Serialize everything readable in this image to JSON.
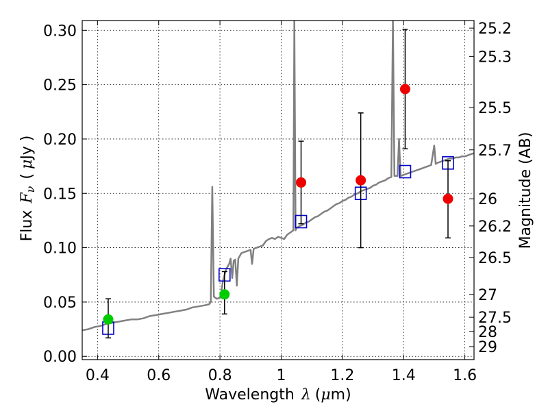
{
  "chart_data": {
    "type": "scatter",
    "title": "",
    "xlabel": "Wavelength",
    "xlabel_symbol": "λ",
    "xlabel_unit_open": "(",
    "xlabel_unit_mu": "μ",
    "xlabel_unit_rest": "m)",
    "ylabel": "Flux",
    "ylabel_symbol": "F",
    "ylabel_symbol_sub": "ν",
    "ylabel_unit_open": "(",
    "ylabel_unit_mu": "μ",
    "ylabel_unit_rest": "Jy )",
    "y2label": "Magnitude (AB)",
    "xlim": [
      0.35,
      1.63
    ],
    "ylim": [
      -0.003,
      0.309
    ],
    "grid": true,
    "x_ticks": [
      {
        "value": 0.4,
        "label": "0.4"
      },
      {
        "value": 0.6,
        "label": "0.6"
      },
      {
        "value": 0.8,
        "label": "0.8"
      },
      {
        "value": 1.0,
        "label": "1"
      },
      {
        "value": 1.2,
        "label": "1.2"
      },
      {
        "value": 1.4,
        "label": "1.4"
      },
      {
        "value": 1.6,
        "label": "1.6"
      }
    ],
    "y_ticks": [
      {
        "value": 0.0,
        "label": "0.00"
      },
      {
        "value": 0.05,
        "label": "0.05"
      },
      {
        "value": 0.1,
        "label": "0.10"
      },
      {
        "value": 0.15,
        "label": "0.15"
      },
      {
        "value": 0.2,
        "label": "0.20"
      },
      {
        "value": 0.25,
        "label": "0.25"
      },
      {
        "value": 0.3,
        "label": "0.30"
      }
    ],
    "y2_ticks": [
      {
        "flux": 0.302,
        "label": "25.2"
      },
      {
        "flux": 0.276,
        "label": "25.3"
      },
      {
        "flux": 0.229,
        "label": "25.5"
      },
      {
        "flux": 0.19,
        "label": "25.7"
      },
      {
        "flux": 0.145,
        "label": "26"
      },
      {
        "flux": 0.12,
        "label": "26.2"
      },
      {
        "flux": 0.091,
        "label": "26.5"
      },
      {
        "flux": 0.057,
        "label": "27"
      },
      {
        "flux": 0.036,
        "label": "27.5"
      },
      {
        "flux": 0.023,
        "label": "28"
      },
      {
        "flux": 0.009,
        "label": "29"
      }
    ],
    "model_color": "#808080",
    "model_spectrum": [
      [
        0.35,
        0.024
      ],
      [
        0.37,
        0.025
      ],
      [
        0.39,
        0.027
      ],
      [
        0.41,
        0.028
      ],
      [
        0.43,
        0.03
      ],
      [
        0.45,
        0.031
      ],
      [
        0.47,
        0.032
      ],
      [
        0.49,
        0.033
      ],
      [
        0.51,
        0.034
      ],
      [
        0.53,
        0.034
      ],
      [
        0.55,
        0.035
      ],
      [
        0.57,
        0.037
      ],
      [
        0.59,
        0.038
      ],
      [
        0.61,
        0.039
      ],
      [
        0.63,
        0.04
      ],
      [
        0.65,
        0.041
      ],
      [
        0.67,
        0.042
      ],
      [
        0.69,
        0.043
      ],
      [
        0.71,
        0.045
      ],
      [
        0.73,
        0.046
      ],
      [
        0.75,
        0.047
      ],
      [
        0.765,
        0.048
      ],
      [
        0.77,
        0.05
      ],
      [
        0.775,
        0.156
      ],
      [
        0.78,
        0.055
      ],
      [
        0.79,
        0.053
      ],
      [
        0.8,
        0.054
      ],
      [
        0.805,
        0.06
      ],
      [
        0.81,
        0.07
      ],
      [
        0.82,
        0.08
      ],
      [
        0.83,
        0.085
      ],
      [
        0.835,
        0.09
      ],
      [
        0.84,
        0.072
      ],
      [
        0.845,
        0.088
      ],
      [
        0.85,
        0.089
      ],
      [
        0.855,
        0.065
      ],
      [
        0.86,
        0.09
      ],
      [
        0.87,
        0.095
      ],
      [
        0.88,
        0.096
      ],
      [
        0.89,
        0.097
      ],
      [
        0.9,
        0.098
      ],
      [
        0.905,
        0.085
      ],
      [
        0.91,
        0.099
      ],
      [
        0.92,
        0.1
      ],
      [
        0.93,
        0.101
      ],
      [
        0.94,
        0.102
      ],
      [
        0.95,
        0.106
      ],
      [
        0.96,
        0.108
      ],
      [
        0.97,
        0.109
      ],
      [
        0.98,
        0.108
      ],
      [
        0.99,
        0.11
      ],
      [
        1.0,
        0.109
      ],
      [
        1.01,
        0.108
      ],
      [
        1.02,
        0.112
      ],
      [
        1.03,
        0.114
      ],
      [
        1.04,
        0.116
      ],
      [
        1.043,
        0.309
      ],
      [
        1.047,
        0.116
      ],
      [
        1.05,
        0.118
      ],
      [
        1.06,
        0.12
      ],
      [
        1.07,
        0.121
      ],
      [
        1.08,
        0.123
      ],
      [
        1.09,
        0.124
      ],
      [
        1.1,
        0.126
      ],
      [
        1.11,
        0.128
      ],
      [
        1.12,
        0.129
      ],
      [
        1.13,
        0.131
      ],
      [
        1.14,
        0.133
      ],
      [
        1.15,
        0.134
      ],
      [
        1.16,
        0.136
      ],
      [
        1.17,
        0.138
      ],
      [
        1.18,
        0.14
      ],
      [
        1.19,
        0.141
      ],
      [
        1.2,
        0.143
      ],
      [
        1.21,
        0.144
      ],
      [
        1.22,
        0.146
      ],
      [
        1.23,
        0.147
      ],
      [
        1.24,
        0.149
      ],
      [
        1.25,
        0.15
      ],
      [
        1.26,
        0.152
      ],
      [
        1.27,
        0.153
      ],
      [
        1.28,
        0.154
      ],
      [
        1.29,
        0.155
      ],
      [
        1.3,
        0.157
      ],
      [
        1.31,
        0.158
      ],
      [
        1.32,
        0.16
      ],
      [
        1.33,
        0.161
      ],
      [
        1.34,
        0.162
      ],
      [
        1.35,
        0.164
      ],
      [
        1.36,
        0.165
      ],
      [
        1.365,
        0.309
      ],
      [
        1.37,
        0.166
      ],
      [
        1.38,
        0.166
      ],
      [
        1.385,
        0.2
      ],
      [
        1.39,
        0.166
      ],
      [
        1.4,
        0.167
      ],
      [
        1.41,
        0.168
      ],
      [
        1.42,
        0.169
      ],
      [
        1.43,
        0.17
      ],
      [
        1.44,
        0.171
      ],
      [
        1.45,
        0.172
      ],
      [
        1.46,
        0.173
      ],
      [
        1.47,
        0.174
      ],
      [
        1.48,
        0.175
      ],
      [
        1.49,
        0.176
      ],
      [
        1.5,
        0.194
      ],
      [
        1.505,
        0.177
      ],
      [
        1.51,
        0.178
      ],
      [
        1.52,
        0.179
      ],
      [
        1.53,
        0.18
      ],
      [
        1.54,
        0.181
      ],
      [
        1.55,
        0.182
      ],
      [
        1.56,
        0.182
      ],
      [
        1.57,
        0.183
      ],
      [
        1.58,
        0.183
      ],
      [
        1.59,
        0.184
      ],
      [
        1.6,
        0.184
      ],
      [
        1.61,
        0.185
      ],
      [
        1.62,
        0.186
      ],
      [
        1.63,
        0.187
      ]
    ],
    "series": [
      {
        "marker": "square",
        "color": "#0000cc",
        "points": [
          {
            "x": 0.435,
            "y": 0.026
          },
          {
            "x": 0.815,
            "y": 0.075
          },
          {
            "x": 1.065,
            "y": 0.124
          },
          {
            "x": 1.26,
            "y": 0.15
          },
          {
            "x": 1.405,
            "y": 0.17
          },
          {
            "x": 1.545,
            "y": 0.178
          }
        ]
      },
      {
        "marker": "circle",
        "color": "#00cc00",
        "points": [
          {
            "x": 0.435,
            "y": 0.034,
            "err_lo": 0.017,
            "err_hi": 0.053
          },
          {
            "x": 0.815,
            "y": 0.057,
            "err_lo": 0.039,
            "err_hi": 0.078
          }
        ]
      },
      {
        "marker": "circle",
        "color": "#ee0000",
        "points": [
          {
            "x": 1.065,
            "y": 0.16,
            "err_lo": 0.122,
            "err_hi": 0.198
          },
          {
            "x": 1.26,
            "y": 0.162,
            "err_lo": 0.1,
            "err_hi": 0.224
          },
          {
            "x": 1.405,
            "y": 0.246,
            "err_lo": 0.191,
            "err_hi": 0.301
          },
          {
            "x": 1.545,
            "y": 0.145,
            "err_lo": 0.109,
            "err_hi": 0.18
          }
        ]
      }
    ]
  }
}
